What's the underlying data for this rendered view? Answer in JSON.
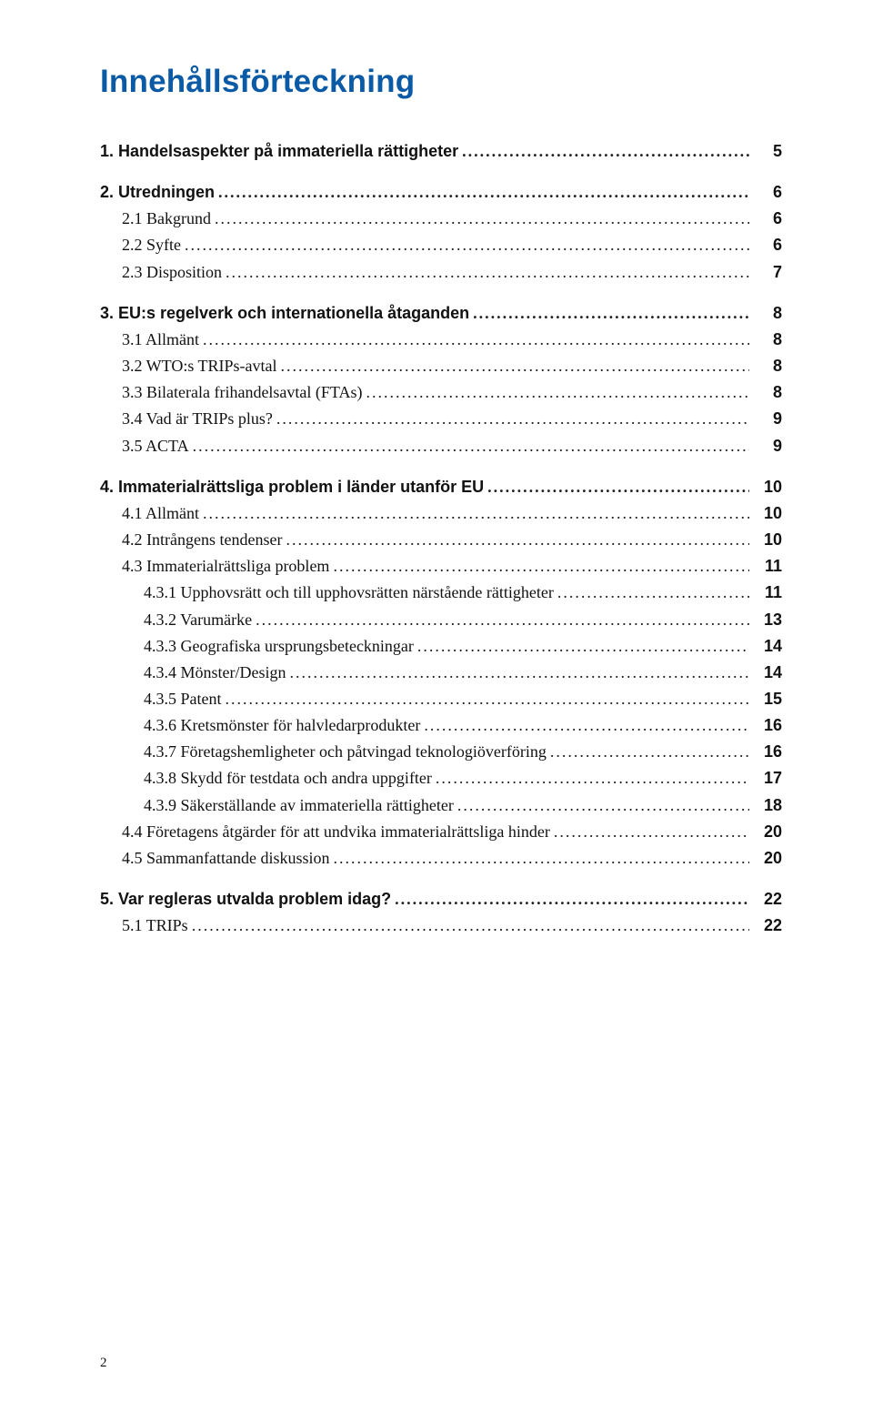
{
  "title": "Innehållsförteckning",
  "page_number": "2",
  "colors": {
    "title_color": "#0a5aa6",
    "text_color": "#111111",
    "background": "#ffffff"
  },
  "typography": {
    "title_fontsize": 35,
    "section_fontsize": 18,
    "body_fontsize": 18,
    "title_family": "Arial",
    "body_family": "Georgia"
  },
  "entries": [
    {
      "level": "section",
      "num": "1.",
      "label": "Handelsaspekter på immateriella rättigheter",
      "page": "5"
    },
    {
      "level": "section",
      "num": "2.",
      "label": "Utredningen",
      "page": "6"
    },
    {
      "level": "sub",
      "num": "2.1",
      "label": "Bakgrund",
      "page": "6"
    },
    {
      "level": "sub",
      "num": "2.2",
      "label": "Syfte",
      "page": "6"
    },
    {
      "level": "sub",
      "num": "2.3",
      "label": "Disposition",
      "page": "7"
    },
    {
      "level": "section",
      "num": "3.",
      "label": "EU:s regelverk och internationella åtaganden",
      "page": "8"
    },
    {
      "level": "sub",
      "num": "3.1",
      "label": "Allmänt",
      "page": "8"
    },
    {
      "level": "sub",
      "num": "3.2",
      "label": "WTO:s TRIPs-avtal",
      "page": "8"
    },
    {
      "level": "sub",
      "num": "3.3",
      "label": "Bilaterala frihandelsavtal (FTAs)",
      "page": "8"
    },
    {
      "level": "sub",
      "num": "3.4",
      "label": "Vad är TRIPs plus?",
      "page": "9"
    },
    {
      "level": "sub",
      "num": "3.5",
      "label": "ACTA",
      "page": "9"
    },
    {
      "level": "section",
      "num": "4.",
      "label": "Immaterialrättsliga problem i länder utanför EU",
      "page": "10"
    },
    {
      "level": "sub",
      "num": "4.1",
      "label": "Allmänt",
      "page": "10"
    },
    {
      "level": "sub",
      "num": "4.2",
      "label": "Intrångens tendenser",
      "page": "10"
    },
    {
      "level": "sub",
      "num": "4.3",
      "label": "Immaterialrättsliga problem",
      "page": "11"
    },
    {
      "level": "subsub",
      "num": "4.3.1",
      "label": "Upphovsrätt och till upphovsrätten närstående rättigheter",
      "page": "11"
    },
    {
      "level": "subsub",
      "num": "4.3.2",
      "label": "Varumärke",
      "page": "13"
    },
    {
      "level": "subsub",
      "num": "4.3.3",
      "label": "Geografiska ursprungsbeteckningar",
      "page": "14"
    },
    {
      "level": "subsub",
      "num": "4.3.4",
      "label": "Mönster/Design",
      "page": "14"
    },
    {
      "level": "subsub",
      "num": "4.3.5",
      "label": "Patent",
      "page": "15"
    },
    {
      "level": "subsub",
      "num": "4.3.6",
      "label": "Kretsmönster för halvledarprodukter",
      "page": "16"
    },
    {
      "level": "subsub",
      "num": "4.3.7",
      "label": "Företagshemligheter och påtvingad teknologiöverföring",
      "page": "16"
    },
    {
      "level": "subsub",
      "num": "4.3.8",
      "label": "Skydd för testdata och andra uppgifter",
      "page": "17"
    },
    {
      "level": "subsub",
      "num": "4.3.9",
      "label": "Säkerställande av immateriella rättigheter",
      "page": "18"
    },
    {
      "level": "sub",
      "num": "4.4",
      "label": "Företagens åtgärder för att undvika immaterialrättsliga hinder",
      "page": "20"
    },
    {
      "level": "sub",
      "num": "4.5",
      "label": "Sammanfattande diskussion",
      "page": "20"
    },
    {
      "level": "section",
      "num": "5.",
      "label": "Var regleras utvalda problem idag?",
      "page": "22"
    },
    {
      "level": "sub",
      "num": "5.1",
      "label": "TRIPs",
      "page": "22"
    }
  ]
}
